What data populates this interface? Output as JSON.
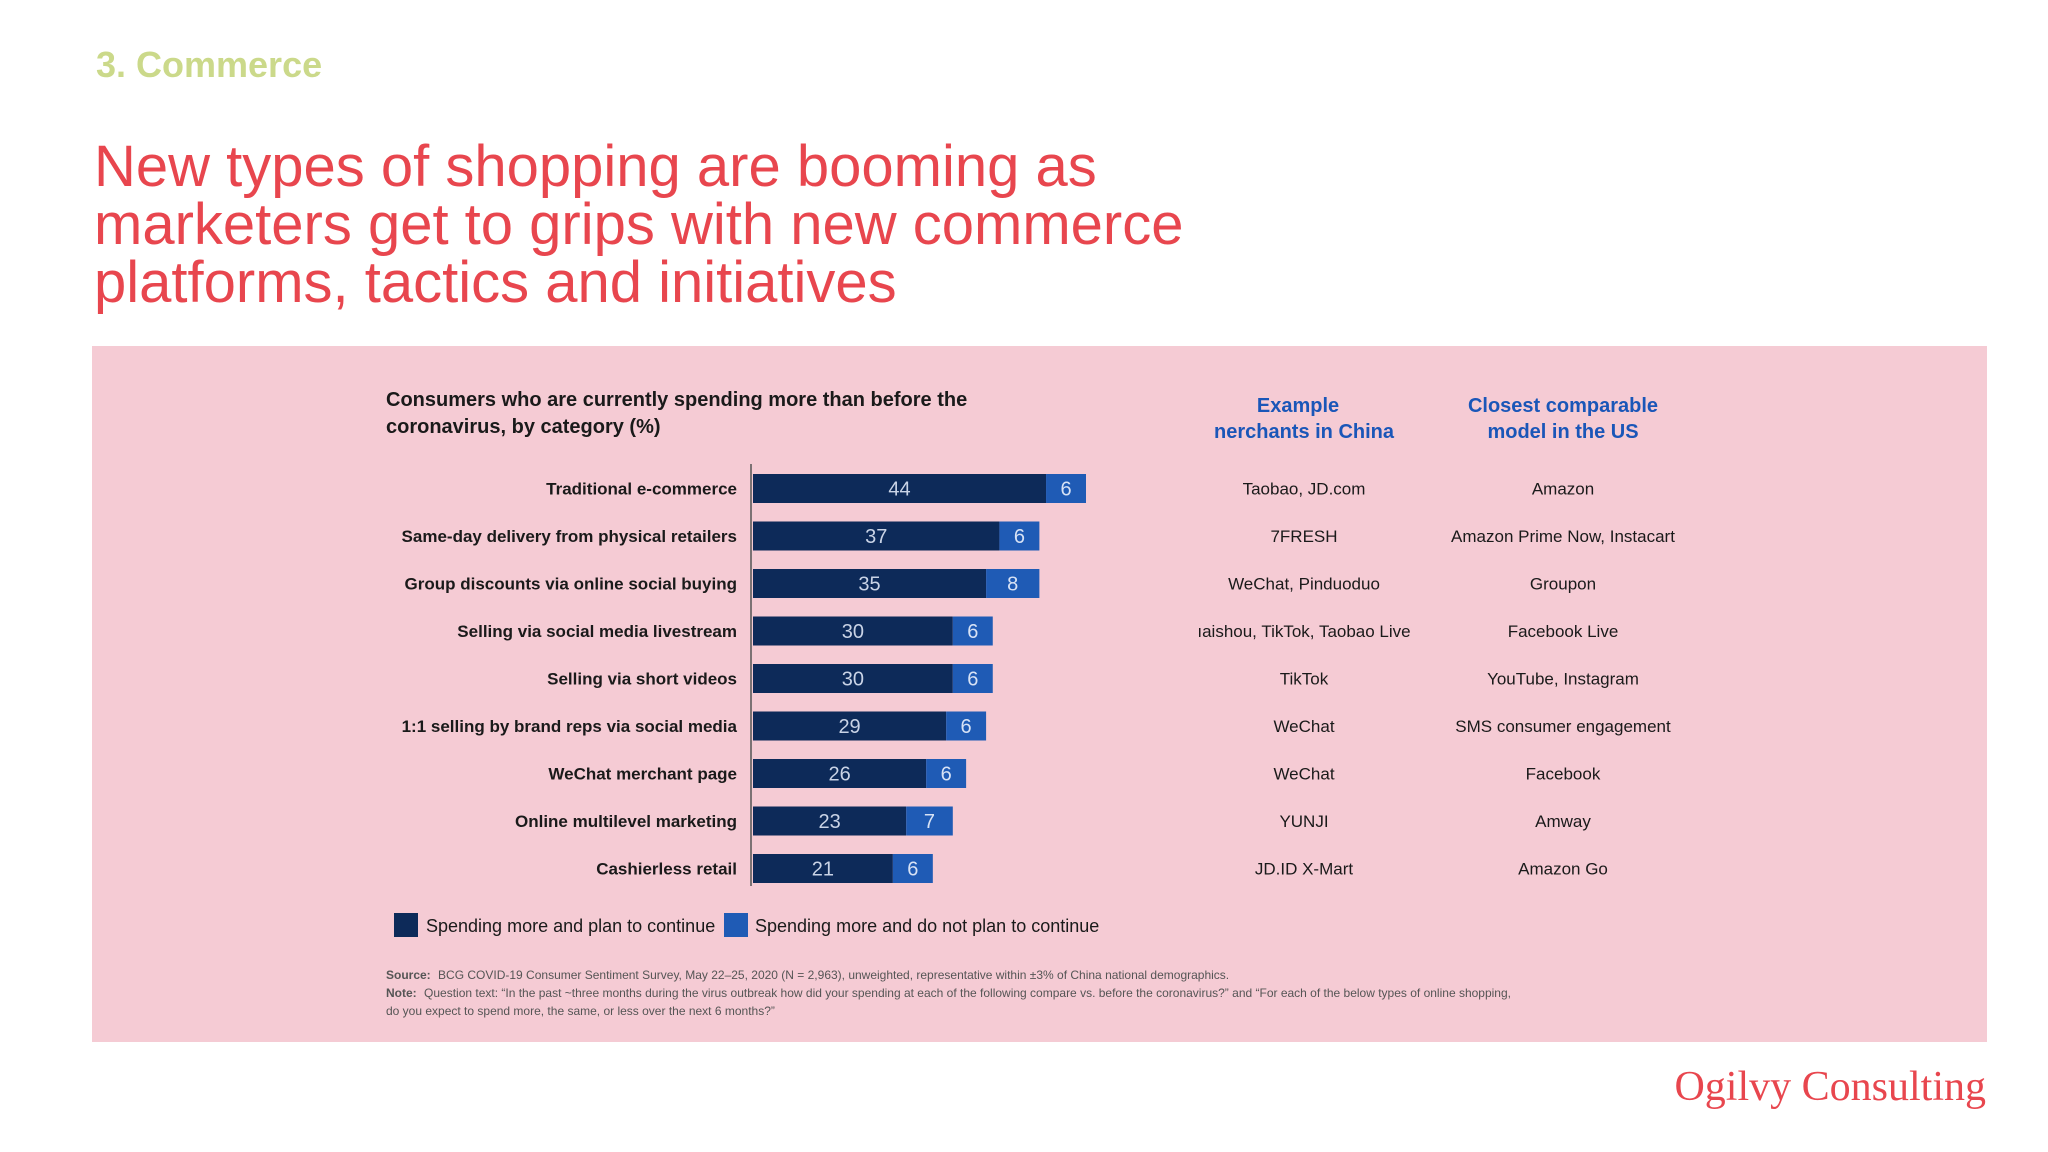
{
  "page": {
    "section_label": "3. Commerce",
    "headline_lines": [
      "New types of shopping are booming as",
      "marketers get to grips with new commerce",
      "platforms, tactics and initiatives"
    ],
    "brand": "Ogilvy Consulting",
    "colors": {
      "headline": "#e8464e",
      "section_label": "#cbd98a",
      "panel_bg": "#f5cbd4",
      "series_continue": "#0d2a59",
      "series_not_continue": "#1f5bb5",
      "column_header": "#1a56b8"
    }
  },
  "chart_data": {
    "type": "bar",
    "orientation": "horizontal",
    "stacked": true,
    "title_lines": [
      "Consumers who are currently spending more than before the",
      "coronavirus, by category (%)"
    ],
    "categories": [
      "Traditional e-commerce",
      "Same-day delivery from physical retailers",
      "Group discounts via online social buying",
      "Selling via social media livestream",
      "Selling via short videos",
      "1:1 selling by brand reps via social media",
      "WeChat merchant page",
      "Online multilevel marketing",
      "Cashierless retail"
    ],
    "series": [
      {
        "name": "Spending more and plan to continue",
        "values": [
          44,
          37,
          35,
          30,
          30,
          29,
          26,
          23,
          21
        ]
      },
      {
        "name": "Spending more and do not plan to continue",
        "values": [
          6,
          6,
          8,
          6,
          6,
          6,
          6,
          7,
          6
        ]
      }
    ],
    "table": {
      "china_header_lines": [
        "Example",
        "nerchants in China"
      ],
      "us_header_lines": [
        "Closest comparable",
        "model in the US"
      ],
      "china": [
        "Taobao, JD.com",
        "7FRESH",
        "WeChat, Pinduoduo",
        "ıaishou, TikTok, Taobao Live",
        "TikTok",
        "WeChat",
        "WeChat",
        "YUNJI",
        "JD.ID X-Mart"
      ],
      "us": [
        "Amazon",
        "Amazon Prime Now, Instacart",
        "Groupon",
        "Facebook Live",
        "YouTube, Instagram",
        "SMS consumer engagement",
        "Facebook",
        "Amway",
        "Amazon Go"
      ]
    },
    "footnote": {
      "source_label": "Source:",
      "source_text": "BCG COVID-19 Consumer Sentiment Survey, May 22–25, 2020 (N = 2,963), unweighted, representative within ±3% of China national demographics.",
      "note_label": "Note:",
      "note_line1": "Question text: “In the past ~three months during the virus outbreak how did your spending at each of the following compare vs. before the coronavirus?” and “For each of the below types of online shopping,",
      "note_line2": "do you expect to spend more, the same, or less over the next 6 months?”"
    }
  }
}
